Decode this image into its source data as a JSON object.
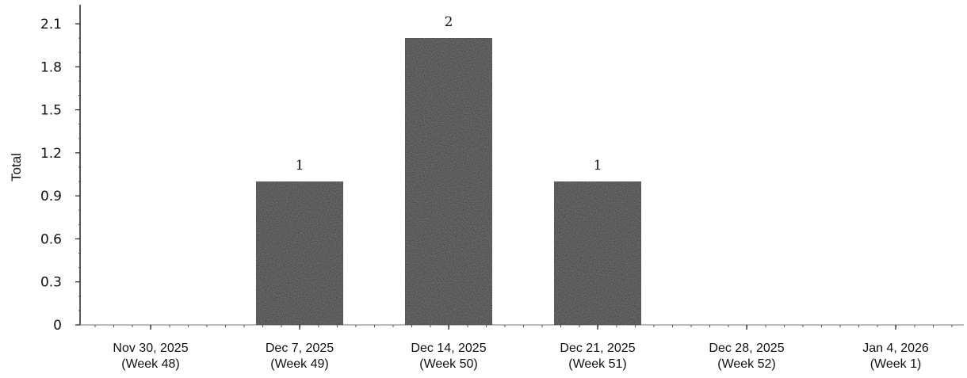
{
  "chart_data": {
    "type": "bar",
    "categories": [
      "Nov 30, 2025 (Week 48)",
      "Dec 7, 2025 (Week 49)",
      "Dec 14, 2025 (Week 50)",
      "Dec 21, 2025 (Week 51)",
      "Dec 28, 2025 (Week 52)",
      "Jan 4, 2026 (Week 1)"
    ],
    "category_labels": [
      [
        "Nov 30, 2025",
        "(Week 48)"
      ],
      [
        "Dec 7, 2025",
        "(Week 49)"
      ],
      [
        "Dec 14, 2025",
        "(Week 50)"
      ],
      [
        "Dec 21, 2025",
        "(Week 51)"
      ],
      [
        "Dec 28, 2025",
        "(Week 52)"
      ],
      [
        "Jan 4, 2026",
        "(Week 1)"
      ]
    ],
    "values": [
      0,
      1,
      2,
      1,
      0,
      0
    ],
    "data_labels": [
      "",
      "1",
      "2",
      "1",
      "",
      ""
    ],
    "title": "",
    "xlabel": "",
    "ylabel": "Total",
    "ylim": [
      0,
      2.1
    ],
    "yticks": [
      0,
      0.3,
      0.6,
      0.9,
      1.2,
      1.5,
      1.8,
      2.1
    ],
    "ytick_labels": [
      "0",
      "0.3",
      "0.6",
      "0.9",
      "1.2",
      "1.5",
      "1.8",
      "2.1"
    ],
    "grid": false,
    "legend": "none",
    "bar_color": "#262626"
  }
}
